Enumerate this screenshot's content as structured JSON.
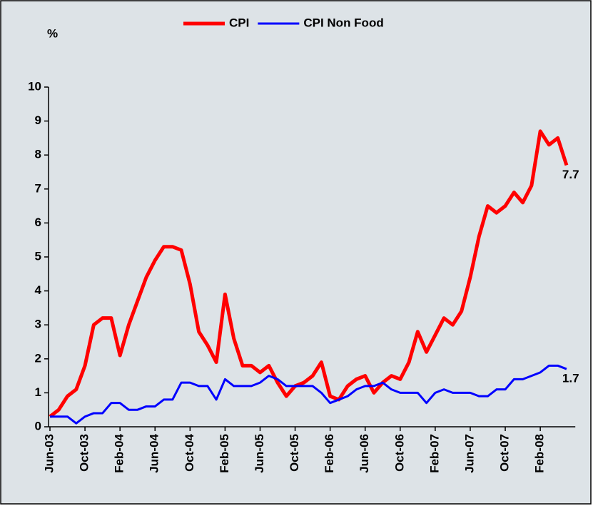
{
  "chart_data": {
    "type": "line",
    "y_label": "%",
    "legend": "top",
    "categories": [
      "Jun-03",
      null,
      null,
      null,
      "Oct-03",
      null,
      null,
      null,
      "Feb-04",
      null,
      null,
      null,
      "Jun-04",
      null,
      null,
      null,
      "Oct-04",
      null,
      null,
      null,
      "Feb-05",
      null,
      null,
      null,
      "Jun-05",
      null,
      null,
      null,
      "Oct-05",
      null,
      null,
      null,
      "Feb-06",
      null,
      null,
      null,
      "Jun-06",
      null,
      null,
      null,
      "Oct-06",
      null,
      null,
      null,
      "Feb-07",
      null,
      null,
      null,
      "Jun-07",
      null,
      null,
      null,
      "Oct-07",
      null,
      null,
      null,
      "Feb-08",
      null,
      null,
      null
    ],
    "series": [
      {
        "name": "CPI",
        "color": "#ff0000",
        "values": [
          0.3,
          0.5,
          0.9,
          1.1,
          1.8,
          3.0,
          3.2,
          3.2,
          2.1,
          3.0,
          3.7,
          4.4,
          4.9,
          5.3,
          5.3,
          5.2,
          4.2,
          2.8,
          2.4,
          1.9,
          3.9,
          2.6,
          1.8,
          1.8,
          1.6,
          1.8,
          1.3,
          0.9,
          1.2,
          1.3,
          1.5,
          1.9,
          0.9,
          0.8,
          1.2,
          1.4,
          1.5,
          1.0,
          1.3,
          1.5,
          1.4,
          1.9,
          2.8,
          2.2,
          2.7,
          3.2,
          3.0,
          3.4,
          4.4,
          5.6,
          6.5,
          6.3,
          6.5,
          6.9,
          6.6,
          7.1,
          8.7,
          8.3,
          8.5,
          7.7
        ]
      },
      {
        "name": "CPI Non Food",
        "color": "#0000ff",
        "values": [
          0.3,
          0.3,
          0.3,
          0.1,
          0.3,
          0.4,
          0.4,
          0.7,
          0.7,
          0.5,
          0.5,
          0.6,
          0.6,
          0.8,
          0.8,
          1.3,
          1.3,
          1.2,
          1.2,
          0.8,
          1.4,
          1.2,
          1.2,
          1.2,
          1.3,
          1.5,
          1.4,
          1.2,
          1.2,
          1.2,
          1.2,
          1.0,
          0.7,
          0.8,
          0.9,
          1.1,
          1.2,
          1.2,
          1.3,
          1.1,
          1.0,
          1.0,
          1.0,
          0.7,
          1.0,
          1.1,
          1.0,
          1.0,
          1.0,
          0.9,
          0.9,
          1.1,
          1.1,
          1.4,
          1.4,
          1.5,
          1.6,
          1.8,
          1.8,
          1.7
        ]
      }
    ],
    "ylim": [
      0,
      10
    ],
    "yticks": [
      0,
      1,
      2,
      3,
      4,
      5,
      6,
      7,
      8,
      9,
      10
    ],
    "grid": false
  }
}
